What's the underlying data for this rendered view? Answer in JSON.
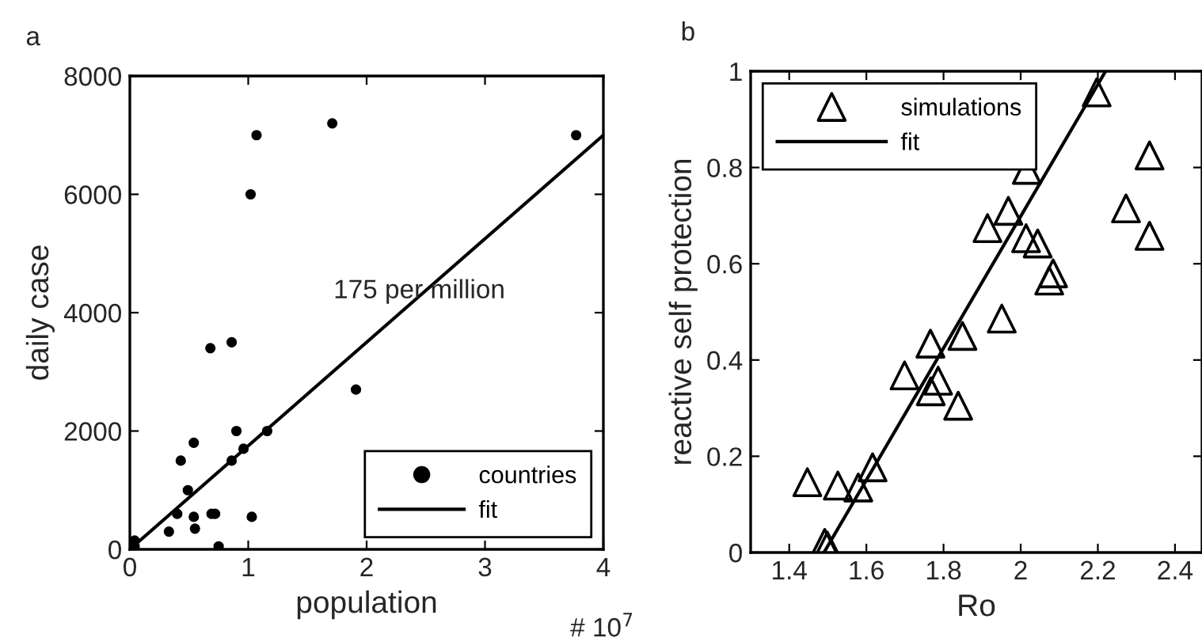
{
  "chart_data": [
    {
      "type": "scatter",
      "title": "a",
      "xlabel": "population",
      "ylabel": "daily case",
      "xlim": [
        0,
        4
      ],
      "ylim": [
        0,
        8000
      ],
      "xticks": [
        0,
        1,
        2,
        3,
        4
      ],
      "yticks": [
        0,
        2000,
        4000,
        6000,
        8000
      ],
      "legend": "bottom right",
      "grid": false,
      "annotations": [
        "175 per million",
        "# 10$^{7}$"
      ],
      "series": [
        {
          "name": "countries",
          "marker": "circle",
          "color": "#000000",
          "x": [
            0.04,
            0.04,
            0.33,
            0.4,
            0.43,
            0.49,
            0.54,
            0.54,
            0.55,
            0.68,
            0.69,
            0.72,
            0.75,
            0.86,
            0.86,
            0.9,
            0.96,
            1.02,
            1.03,
            1.07,
            1.16,
            1.71,
            1.91,
            3.77
          ],
          "values": [
            150,
            50,
            300,
            600,
            1500,
            1000,
            1800,
            550,
            350,
            3400,
            600,
            600,
            50,
            3500,
            1500,
            2000,
            1700,
            6000,
            550,
            7000,
            2000,
            7200,
            2700,
            7000
          ]
        },
        {
          "name": "fit",
          "type": "line",
          "marker": "none",
          "line_style": "solid",
          "color": "#000000",
          "x": [
            0,
            4
          ],
          "values": [
            0,
            7000
          ]
        }
      ]
    },
    {
      "type": "scatter",
      "title": "b",
      "xlabel": "Ro",
      "ylabel": "reactive self protection",
      "xlim": [
        1.3,
        2.47
      ],
      "ylim": [
        0,
        1
      ],
      "xticks": [
        1.4,
        1.6,
        1.8,
        2,
        2.2,
        2.4
      ],
      "yticks": [
        0,
        0.2,
        0.4,
        0.6,
        0.8,
        1
      ],
      "legend": "top left",
      "grid": false,
      "series": [
        {
          "name": "simulations",
          "marker": "triangle",
          "color": "#000000",
          "x": [
            1.447,
            1.526,
            1.579,
            1.616,
            1.492,
            1.499,
            1.699,
            1.766,
            1.786,
            1.767,
            1.838,
            1.849,
            1.914,
            1.968,
            1.951,
            2.014,
            2.044,
            2.074,
            2.084,
            2.016,
            2.197,
            2.273,
            2.334,
            2.334
          ],
          "values": [
            0.146,
            0.139,
            0.135,
            0.177,
            0.02,
            0.014,
            0.368,
            0.434,
            0.357,
            0.335,
            0.305,
            0.45,
            0.674,
            0.71,
            0.486,
            0.653,
            0.642,
            0.565,
            0.58,
            0.795,
            0.956,
            0.715,
            0.825,
            0.658
          ]
        },
        {
          "name": "fit",
          "type": "line",
          "marker": "none",
          "line_style": "solid",
          "color": "#000000",
          "x": [
            1.49,
            2.22
          ],
          "values": [
            0,
            1
          ]
        }
      ]
    }
  ]
}
